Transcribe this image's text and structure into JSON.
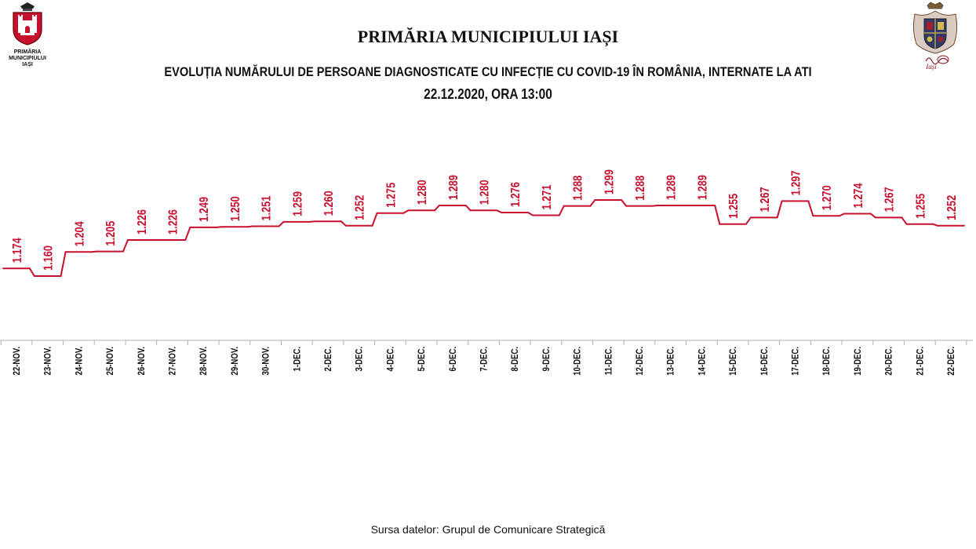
{
  "header": {
    "title": "PRIMĂRIA MUNICIPIULUI IAȘI",
    "subtitle": "EVOLUȚIA NUMĂRULUI DE PERSOANE DIAGNOSTICATE CU INFECȚIE CU COVID-19 ÎN ROMÂNIA, INTERNATE LA ATI",
    "date": "22.12.2020, ORA 13:00"
  },
  "logo_left": {
    "caption": "PRIMĂRIA\nMUNICIPIULUI\nIAȘI",
    "icon": "city-coat-of-arms-icon"
  },
  "logo_right": {
    "icon": "iasi-heraldic-emblem-icon",
    "text": "Iași"
  },
  "footer": {
    "source": "Sursa datelor: Grupul de Comunicare Strategică"
  },
  "colors": {
    "line": "#c8102e",
    "labels": "#c8102e",
    "axis": "#b0b0b0",
    "ticks": "#111111"
  },
  "chart_data": {
    "type": "line",
    "categories": [
      "22-NOV.",
      "23-NOV.",
      "24-NOV.",
      "25-NOV.",
      "26-NOV.",
      "27-NOV.",
      "28-NOV.",
      "29-NOV.",
      "30-NOV.",
      "1-DEC.",
      "2-DEC.",
      "3-DEC.",
      "4-DEC.",
      "5-DEC.",
      "6-DEC.",
      "7-DEC.",
      "8-DEC.",
      "9-DEC.",
      "10-DEC.",
      "11-DEC.",
      "12-DEC.",
      "13-DEC.",
      "14-DEC.",
      "15-DEC.",
      "16-DEC.",
      "17-DEC.",
      "18-DEC.",
      "19-DEC.",
      "20-DEC.",
      "21-DEC.",
      "22-DEC."
    ],
    "values": [
      1174,
      1160,
      1204,
      1205,
      1226,
      1226,
      1249,
      1250,
      1251,
      1259,
      1260,
      1252,
      1275,
      1280,
      1289,
      1280,
      1276,
      1271,
      1288,
      1299,
      1288,
      1289,
      1289,
      1255,
      1267,
      1297,
      1270,
      1274,
      1267,
      1255,
      1252
    ],
    "value_labels": [
      "1.174",
      "1.160",
      "1.204",
      "1.205",
      "1.226",
      "1.226",
      "1.249",
      "1.250",
      "1.251",
      "1.259",
      "1.260",
      "1.252",
      "1.275",
      "1.280",
      "1.289",
      "1.280",
      "1.276",
      "1.271",
      "1.288",
      "1.299",
      "1.288",
      "1.289",
      "1.289",
      "1.255",
      "1.267",
      "1.297",
      "1.270",
      "1.274",
      "1.267",
      "1.255",
      "1.252"
    ],
    "xlabel": "",
    "ylabel": "",
    "ylim": [
      1150,
      1310
    ],
    "grid": false,
    "legend": "none",
    "data_labels": "rotated-vertical-above-points",
    "tick_labels": "rotated-vertical"
  }
}
